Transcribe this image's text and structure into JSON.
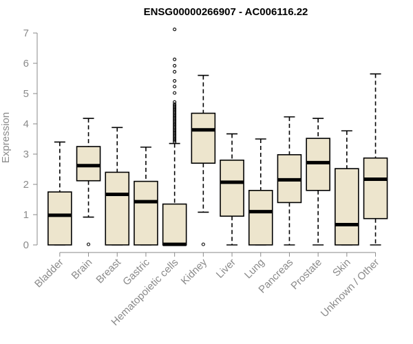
{
  "chart_data": {
    "type": "boxplot",
    "title": "ENSG00000266907 - AC006116.22",
    "xlabel": "",
    "ylabel": "Expression",
    "ylim": [
      0,
      7
    ],
    "yticks": [
      0,
      1,
      2,
      3,
      4,
      5,
      6,
      7
    ],
    "grid": false,
    "box_fill": "#ede5cd",
    "box_stroke": "#000000",
    "categories": [
      "Bladder",
      "Brain",
      "Breast",
      "Gastric",
      "Hematopoietic cells",
      "Kidney",
      "Liver",
      "Lung",
      "Pancreas",
      "Prostate",
      "Skin",
      "Unknown / Other"
    ],
    "boxes": [
      {
        "category": "Bladder",
        "whisker_low": 0,
        "q1": 0,
        "median": 0.98,
        "q3": 1.75,
        "whisker_high": 3.4,
        "outliers": []
      },
      {
        "category": "Brain",
        "whisker_low": 0.92,
        "q1": 2.12,
        "median": 2.62,
        "q3": 3.25,
        "whisker_high": 4.18,
        "outliers": [
          0.02
        ]
      },
      {
        "category": "Breast",
        "whisker_low": 0,
        "q1": 0,
        "median": 1.67,
        "q3": 2.4,
        "whisker_high": 3.88,
        "outliers": []
      },
      {
        "category": "Gastric",
        "whisker_low": 0,
        "q1": 0,
        "median": 1.43,
        "q3": 2.1,
        "whisker_high": 3.23,
        "outliers": []
      },
      {
        "category": "Hematopoietic cells",
        "whisker_low": 0,
        "q1": 0,
        "median": 0.02,
        "q3": 1.35,
        "whisker_high": 3.35,
        "outliers": [
          3.4,
          3.45,
          3.5,
          3.55,
          3.6,
          3.65,
          3.7,
          3.75,
          3.8,
          3.85,
          3.9,
          3.95,
          4.0,
          4.05,
          4.1,
          4.15,
          4.2,
          4.25,
          4.3,
          4.35,
          4.4,
          4.45,
          4.5,
          4.55,
          4.6,
          4.65,
          4.72,
          5.02,
          5.23,
          5.42,
          5.72,
          5.92,
          6.13,
          7.12
        ]
      },
      {
        "category": "Kidney",
        "whisker_low": 1.08,
        "q1": 2.7,
        "median": 3.8,
        "q3": 4.35,
        "whisker_high": 5.6,
        "outliers": [
          0.02
        ]
      },
      {
        "category": "Liver",
        "whisker_low": 0,
        "q1": 0.95,
        "median": 2.07,
        "q3": 2.8,
        "whisker_high": 3.67,
        "outliers": []
      },
      {
        "category": "Lung",
        "whisker_low": 0,
        "q1": 0,
        "median": 1.1,
        "q3": 1.8,
        "whisker_high": 3.5,
        "outliers": []
      },
      {
        "category": "Pancreas",
        "whisker_low": 0,
        "q1": 1.4,
        "median": 2.15,
        "q3": 2.98,
        "whisker_high": 4.23,
        "outliers": []
      },
      {
        "category": "Prostate",
        "whisker_low": 0,
        "q1": 1.8,
        "median": 2.72,
        "q3": 3.52,
        "whisker_high": 4.18,
        "outliers": []
      },
      {
        "category": "Skin",
        "whisker_low": 0,
        "q1": 0,
        "median": 0.67,
        "q3": 2.52,
        "whisker_high": 3.77,
        "outliers": []
      },
      {
        "category": "Unknown / Other",
        "whisker_low": 0,
        "q1": 0.87,
        "median": 2.17,
        "q3": 2.87,
        "whisker_high": 5.65,
        "outliers": []
      }
    ]
  }
}
